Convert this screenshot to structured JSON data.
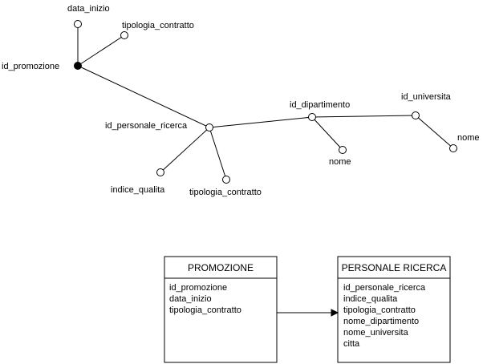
{
  "tree": {
    "labels": {
      "data_inizio": "data_inizio",
      "tipologia_contratto_top": "tipologia_contratto",
      "id_promozione": "id_promozione",
      "id_personale_ricerca": "id_personale_ricerca",
      "indice_qualita": "indice_qualita",
      "tipologia_contratto_bottom": "tipologia_contratto",
      "id_dipartimento": "id_dipartimento",
      "nome_dipartimento": "nome",
      "id_universita": "id_universita",
      "nome_universita": "nome"
    }
  },
  "tables": {
    "promozione": {
      "title": "PROMOZIONE",
      "fields": [
        "id_promozione",
        "data_inizio",
        "tipologia_contratto"
      ]
    },
    "personale_ricerca": {
      "title": "PERSONALE RICERCA",
      "fields": [
        "id_personale_ricerca",
        "indice_qualita",
        "tipologia_contratto",
        "nome_dipartimento",
        "nome_universita",
        "citta"
      ]
    }
  }
}
